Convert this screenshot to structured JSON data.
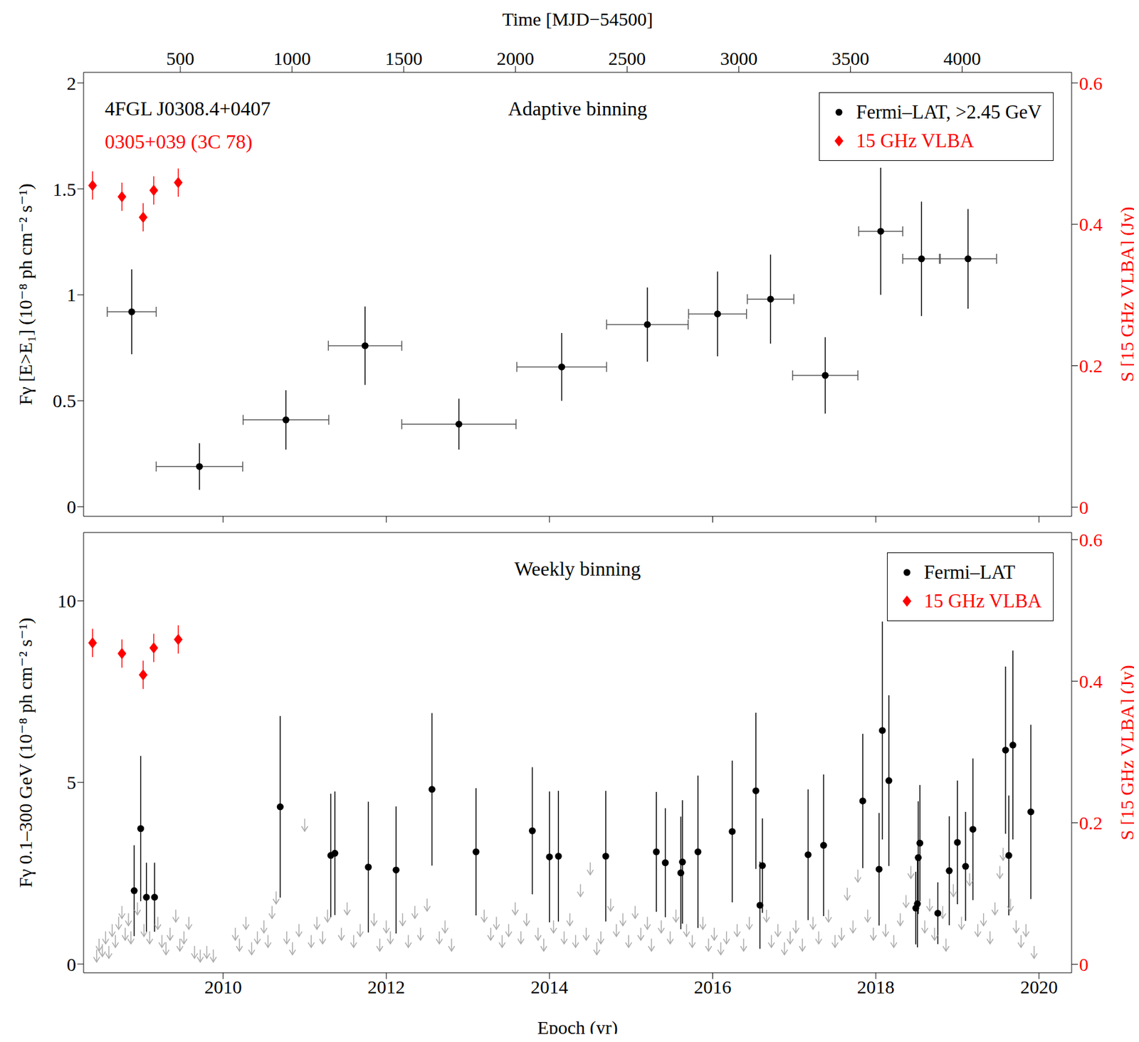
{
  "chart_data": [
    {
      "type": "scatter",
      "title": "Adaptive binning",
      "annotations": [
        {
          "text": "4FGL J0308.4+0407",
          "color": "#000000"
        },
        {
          "text": "0305+039 (3C 78)",
          "color": "#ff0000"
        }
      ],
      "x2label": "Time [MJD−54500]",
      "x2lim": [
        67,
        4490
      ],
      "x2ticks": [
        500,
        1000,
        1500,
        2000,
        2500,
        3000,
        3500,
        4000
      ],
      "xlim": [
        2008.29,
        2020.4
      ],
      "xticks": [
        2010,
        2012,
        2014,
        2016,
        2018,
        2020
      ],
      "ylabel": "Fγ [E>E₁] (10⁻⁸ ph cm⁻² s⁻¹)",
      "ylim": [
        -0.045,
        2.05
      ],
      "yticks": [
        0,
        0.5,
        1,
        1.5,
        2
      ],
      "y2label": "S [15 GHz VLBA] (Jy)",
      "y2lim": [
        -0.013,
        0.615
      ],
      "y2ticks": [
        0,
        0.2,
        0.4,
        0.6
      ],
      "legend": "upper right",
      "series": [
        {
          "name": "Fermi–LAT, >2.45 GeV",
          "color": "#000000",
          "marker": "circle",
          "x": [
            2008.88,
            2009.71,
            2010.77,
            2011.74,
            2012.89,
            2014.15,
            2015.2,
            2016.06,
            2016.71,
            2017.38,
            2018.06,
            2018.56,
            2019.13
          ],
          "values": [
            0.92,
            0.19,
            0.41,
            0.76,
            0.39,
            0.66,
            0.86,
            0.91,
            0.98,
            0.62,
            1.3,
            1.17,
            1.17
          ],
          "x_errors": [
            0.3,
            0.53,
            0.525,
            0.45,
            0.7,
            0.55,
            0.5,
            0.355,
            0.285,
            0.4,
            0.27,
            0.23,
            0.35
          ],
          "y_errors": [
            0.2,
            0.11,
            0.14,
            0.185,
            0.12,
            0.16,
            0.175,
            0.2,
            0.21,
            0.18,
            0.3,
            0.27,
            0.235
          ]
        },
        {
          "name": "15 GHz VLBA",
          "color": "#ff0000",
          "marker": "diamond",
          "axis": "y2",
          "x": [
            2008.4,
            2008.76,
            2009.02,
            2009.15,
            2009.45
          ],
          "values": [
            0.455,
            0.439,
            0.41,
            0.448,
            0.459
          ],
          "y_errors": [
            0.02,
            0.02,
            0.02,
            0.02,
            0.02
          ]
        }
      ]
    },
    {
      "type": "scatter",
      "title": "Weekly binning",
      "xlabel": "Epoch (yr)",
      "xlim": [
        2008.29,
        2020.4
      ],
      "xticks": [
        2010,
        2012,
        2014,
        2016,
        2018,
        2020
      ],
      "ylabel": "Fγ 0.1–300 GeV (10⁻⁸ ph cm⁻² s⁻¹)",
      "ylim": [
        -0.24,
        11.88
      ],
      "yticks": [
        0,
        5,
        10
      ],
      "y2label": "S [15 GHz VLBA] (Jy)",
      "y2lim": [
        -0.012,
        0.61
      ],
      "y2ticks": [
        0,
        0.2,
        0.4,
        0.6
      ],
      "legend": "upper right",
      "series": [
        {
          "name": "Fermi–LAT",
          "color": "#000000",
          "marker": "circle",
          "x": [
            2008.91,
            2008.99,
            2009.06,
            2009.16,
            2010.7,
            2011.32,
            2011.37,
            2011.78,
            2012.12,
            2012.56,
            2013.1,
            2013.79,
            2014.0,
            2014.11,
            2014.69,
            2015.31,
            2015.42,
            2015.61,
            2015.63,
            2015.82,
            2016.24,
            2016.53,
            2016.58,
            2016.61,
            2017.17,
            2017.36,
            2017.84,
            2018.04,
            2018.08,
            2018.16,
            2018.49,
            2018.51,
            2018.52,
            2018.54,
            2018.76,
            2018.9,
            2019.0,
            2019.1,
            2019.19,
            2019.59,
            2019.63,
            2019.68,
            2019.9
          ],
          "values": [
            2.02,
            3.73,
            1.84,
            1.84,
            4.33,
            2.99,
            3.05,
            2.67,
            2.59,
            4.81,
            3.09,
            3.67,
            2.95,
            2.97,
            2.97,
            3.09,
            2.79,
            2.51,
            2.81,
            3.09,
            3.65,
            4.77,
            1.62,
            2.71,
            3.01,
            3.27,
            4.49,
            2.61,
            6.43,
            5.05,
            1.54,
            1.66,
            2.93,
            3.33,
            1.4,
            2.57,
            3.35,
            2.69,
            3.71,
            5.89,
            2.99,
            6.03,
            4.19
          ],
          "y_errors": [
            1.25,
            2.0,
            0.95,
            0.95,
            2.5,
            1.7,
            1.7,
            1.8,
            1.75,
            2.1,
            1.75,
            1.75,
            1.8,
            1.8,
            1.8,
            1.65,
            1.5,
            1.55,
            1.7,
            2.1,
            1.95,
            2.15,
            1.2,
            1.3,
            1.8,
            1.95,
            1.85,
            1.55,
            3.0,
            2.35,
            1.0,
            1.2,
            1.55,
            1.6,
            0.85,
            1.5,
            1.7,
            1.5,
            1.95,
            2.3,
            1.65,
            2.6,
            2.4
          ],
          "upper_limits_color": "#aaaaaa",
          "upper_limits_x": [
            2008.45,
            2008.48,
            2008.52,
            2008.56,
            2008.6,
            2008.64,
            2008.68,
            2008.72,
            2008.76,
            2008.8,
            2008.84,
            2008.87,
            2008.95,
            2009.03,
            2009.1,
            2009.2,
            2009.25,
            2009.3,
            2009.35,
            2009.42,
            2009.47,
            2009.52,
            2009.58,
            2009.65,
            2009.72,
            2009.8,
            2009.88,
            2010.15,
            2010.2,
            2010.28,
            2010.35,
            2010.42,
            2010.5,
            2010.55,
            2010.6,
            2010.65,
            2010.78,
            2010.85,
            2010.93,
            2011.0,
            2011.08,
            2011.15,
            2011.22,
            2011.28,
            2011.45,
            2011.52,
            2011.6,
            2011.68,
            2011.85,
            2011.92,
            2012.0,
            2012.05,
            2012.2,
            2012.27,
            2012.35,
            2012.42,
            2012.5,
            2012.65,
            2012.72,
            2012.8,
            2013.2,
            2013.28,
            2013.35,
            2013.42,
            2013.5,
            2013.58,
            2013.65,
            2013.72,
            2013.86,
            2013.93,
            2014.05,
            2014.18,
            2014.25,
            2014.32,
            2014.38,
            2014.45,
            2014.5,
            2014.58,
            2014.63,
            2014.75,
            2014.82,
            2014.9,
            2014.97,
            2015.05,
            2015.12,
            2015.2,
            2015.25,
            2015.37,
            2015.48,
            2015.55,
            2015.68,
            2015.75,
            2015.88,
            2015.95,
            2016.02,
            2016.1,
            2016.17,
            2016.3,
            2016.38,
            2016.45,
            2016.66,
            2016.72,
            2016.8,
            2016.88,
            2016.95,
            2017.02,
            2017.1,
            2017.23,
            2017.3,
            2017.42,
            2017.5,
            2017.58,
            2017.65,
            2017.72,
            2017.78,
            2017.9,
            2017.97,
            2018.12,
            2018.22,
            2018.3,
            2018.37,
            2018.43,
            2018.6,
            2018.66,
            2018.72,
            2018.82,
            2018.86,
            2018.95,
            2019.05,
            2019.15,
            2019.25,
            2019.32,
            2019.4,
            2019.46,
            2019.52,
            2019.56,
            2019.65,
            2019.72,
            2019.78,
            2019.84,
            2019.94
          ],
          "upper_limits": [
            0.4,
            0.7,
            0.55,
            0.9,
            0.5,
            1.1,
            0.8,
            1.3,
            1.6,
            1.0,
            1.4,
            0.9,
            1.7,
            1.1,
            0.9,
            1.3,
            0.8,
            0.6,
            1.0,
            1.5,
            0.7,
            0.9,
            1.3,
            0.5,
            0.4,
            0.5,
            0.4,
            1.0,
            0.7,
            1.3,
            0.6,
            0.9,
            1.2,
            0.8,
            1.6,
            2.0,
            0.9,
            0.6,
            1.1,
            4.0,
            0.8,
            1.3,
            0.9,
            1.5,
            1.0,
            1.7,
            0.8,
            1.1,
            1.4,
            0.7,
            1.2,
            0.9,
            1.4,
            0.8,
            1.6,
            1.0,
            1.8,
            0.9,
            1.2,
            0.7,
            1.5,
            1.0,
            1.3,
            0.8,
            1.1,
            1.7,
            0.9,
            1.4,
            1.0,
            0.7,
            1.2,
            0.9,
            1.4,
            0.8,
            2.2,
            1.0,
            2.8,
            0.6,
            0.9,
            1.8,
            1.1,
            1.4,
            0.8,
            1.6,
            1.0,
            1.3,
            0.7,
            1.2,
            0.9,
            1.5,
            1.1,
            0.8,
            1.3,
            0.7,
            1.0,
            0.6,
            0.9,
            1.1,
            0.7,
            1.3,
            1.5,
            0.8,
            1.1,
            0.6,
            0.9,
            1.2,
            0.7,
            1.3,
            0.9,
            1.5,
            0.8,
            1.0,
            2.1,
            1.2,
            2.6,
            1.5,
            1.0,
            1.1,
            0.8,
            1.4,
            1.9,
            2.7,
            1.2,
            1.8,
            1.0,
            1.6,
            0.7,
            2.2,
            1.3,
            2.5,
            1.1,
            1.4,
            0.9,
            1.7,
            2.7,
            3.2,
            1.8,
            1.2,
            0.8,
            1.1,
            0.5
          ]
        },
        {
          "name": "15 GHz VLBA",
          "color": "#ff0000",
          "marker": "diamond",
          "axis": "y2",
          "x": [
            2008.4,
            2008.76,
            2009.02,
            2009.15,
            2009.45
          ],
          "values": [
            0.454,
            0.439,
            0.409,
            0.447,
            0.459
          ],
          "y_errors": [
            0.02,
            0.02,
            0.02,
            0.02,
            0.02
          ]
        }
      ]
    }
  ]
}
